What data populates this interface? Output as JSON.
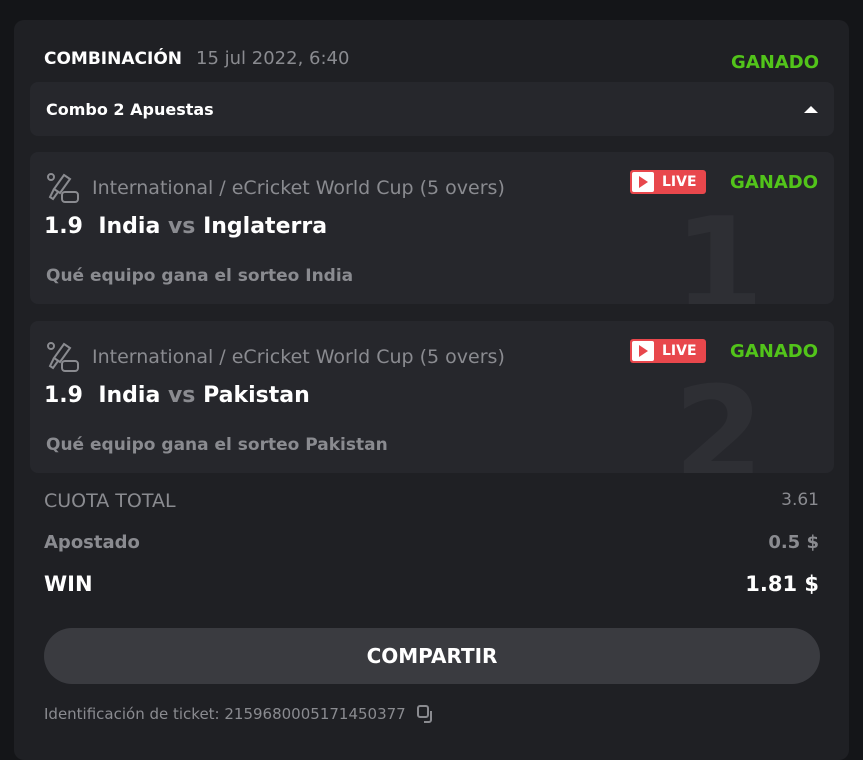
{
  "header": {
    "title": "COMBINACIÓN",
    "date": "15 jul 2022, 6:40",
    "status": "GANADO"
  },
  "combo": {
    "label": "Combo 2 Apuestas",
    "icon": "triangle-up-icon"
  },
  "bets": [
    {
      "number": "1",
      "event": "International / eCricket World Cup (5 overs)",
      "live": "LIVE",
      "status": "GANADO",
      "odds": "1.9",
      "home": "India",
      "vs": "vs",
      "away": "Inglaterra",
      "selection": "Qué equipo gana el sorteo India"
    },
    {
      "number": "2",
      "event": "International / eCricket World Cup (5 overs)",
      "live": "LIVE",
      "status": "GANADO",
      "odds": "1.9",
      "home": "India",
      "vs": "vs",
      "away": "Pakistan",
      "selection": "Qué equipo gana el sorteo Pakistan"
    }
  ],
  "summary": {
    "total_odds_label": "CUOTA TOTAL",
    "total_odds": "3.61",
    "stake_label": "Apostado",
    "stake": "0.5 $",
    "win_label": "WIN",
    "win": "1.81 $"
  },
  "share_label": "COMPARTIR",
  "ticket": {
    "label": "Identificación de ticket: 2159680005171450377"
  },
  "colors": {
    "win": "#52c41a",
    "live": "#e8474c",
    "card": "#1f2024"
  }
}
